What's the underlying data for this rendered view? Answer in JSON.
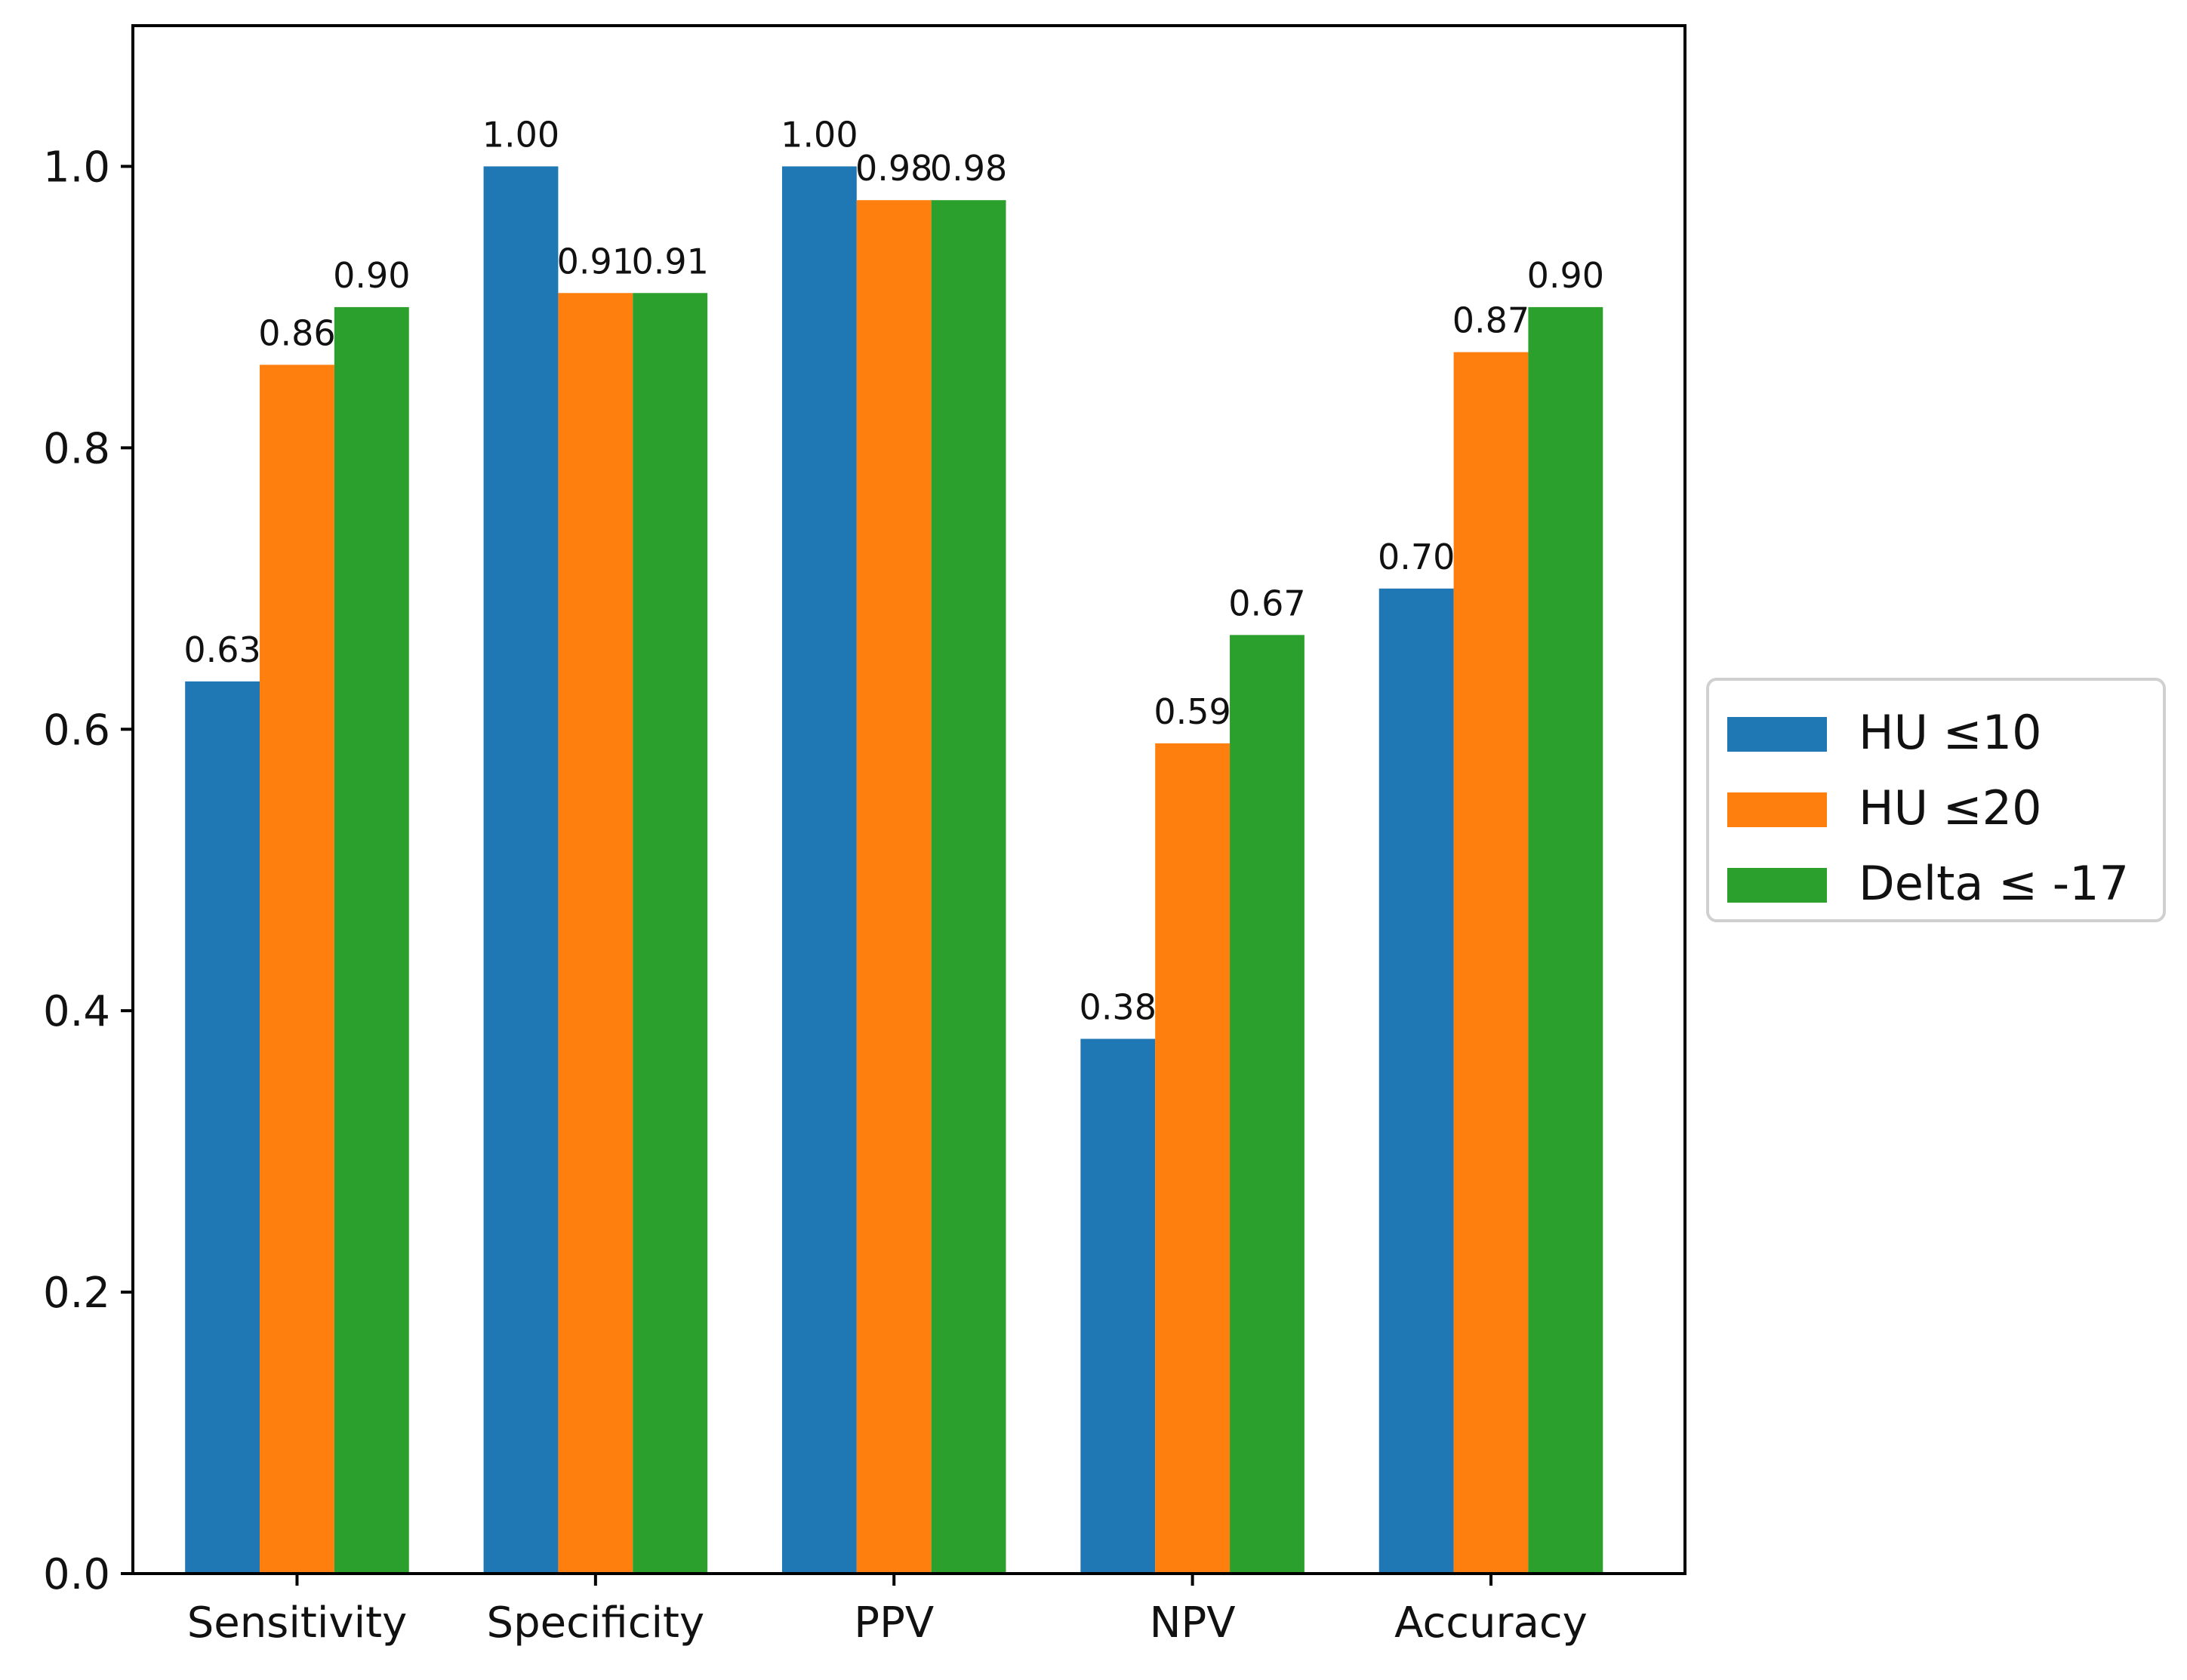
{
  "chart_data": {
    "type": "bar",
    "title": "",
    "xlabel": "",
    "ylabel": "",
    "categories": [
      "Sensitivity",
      "Specificity",
      "PPV",
      "NPV",
      "Accuracy"
    ],
    "series": [
      {
        "name": "HU ≤10",
        "color": "#1f77b4",
        "values": [
          0.634,
          1.0,
          1.0,
          0.38,
          0.7
        ],
        "labels": [
          "0.63",
          "1.00",
          "1.00",
          "0.38",
          "0.70"
        ]
      },
      {
        "name": "HU ≤20",
        "color": "#ff7f0e",
        "values": [
          0.859,
          0.91,
          0.976,
          0.59,
          0.868
        ],
        "labels": [
          "0.86",
          "0.91",
          "0.98",
          "0.59",
          "0.87"
        ]
      },
      {
        "name": "Delta ≤ -17",
        "color": "#2ca02c",
        "values": [
          0.9,
          0.91,
          0.976,
          0.667,
          0.9
        ],
        "labels": [
          "0.90",
          "0.91",
          "0.98",
          "0.67",
          "0.90"
        ]
      }
    ],
    "ylim": [
      0,
      1.1
    ],
    "yticks": [
      "0.0",
      "0.2",
      "0.4",
      "0.6",
      "0.8",
      "1.0"
    ],
    "grid": false,
    "legend_position": "right"
  }
}
